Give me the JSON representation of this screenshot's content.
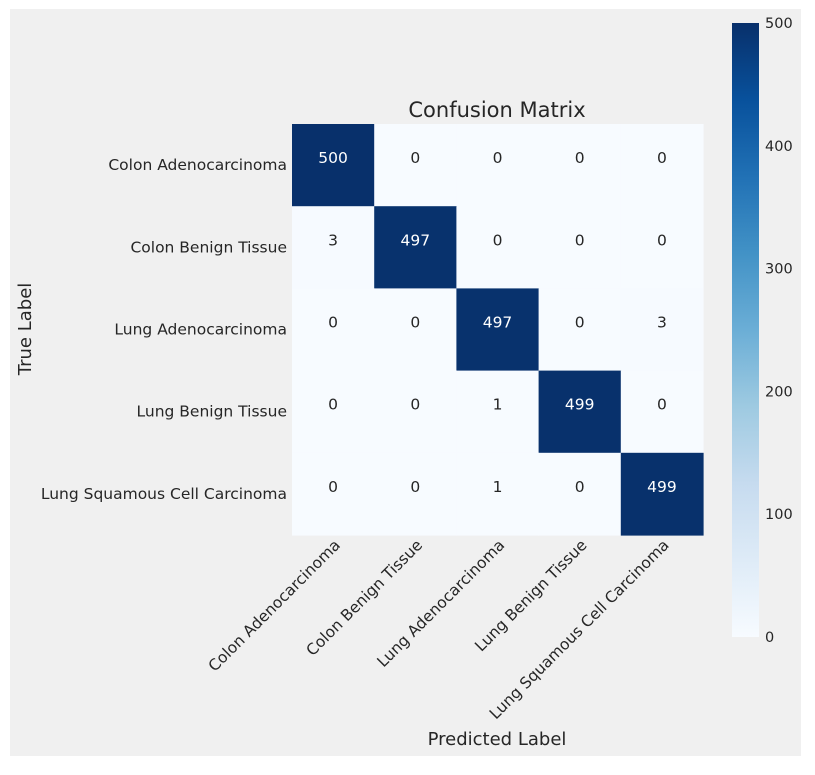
{
  "chart_data": {
    "type": "heatmap",
    "title": "Confusion Matrix",
    "xlabel": "Predicted Label",
    "ylabel": "True Label",
    "x_tick_labels": [
      "Colon Adenocarcinoma",
      "Colon Benign Tissue",
      "Lung Adenocarcinoma",
      "Lung Benign Tissue",
      "Lung Squamous Cell Carcinoma"
    ],
    "y_tick_labels": [
      "Colon Adenocarcinoma",
      "Colon Benign Tissue",
      "Lung Adenocarcinoma",
      "Lung Benign Tissue",
      "Lung Squamous Cell Carcinoma"
    ],
    "matrix": [
      [
        500,
        0,
        0,
        0,
        0
      ],
      [
        3,
        497,
        0,
        0,
        0
      ],
      [
        0,
        0,
        497,
        0,
        3
      ],
      [
        0,
        0,
        1,
        499,
        0
      ],
      [
        0,
        0,
        1,
        0,
        499
      ]
    ],
    "colormap": "Blues",
    "value_range": [
      0,
      500
    ],
    "colorbar": {
      "ticks": [
        0,
        100,
        200,
        300,
        400,
        500
      ],
      "tick_labels": [
        "0",
        "100",
        "200",
        "300",
        "400",
        "500"
      ]
    },
    "grid": false
  }
}
